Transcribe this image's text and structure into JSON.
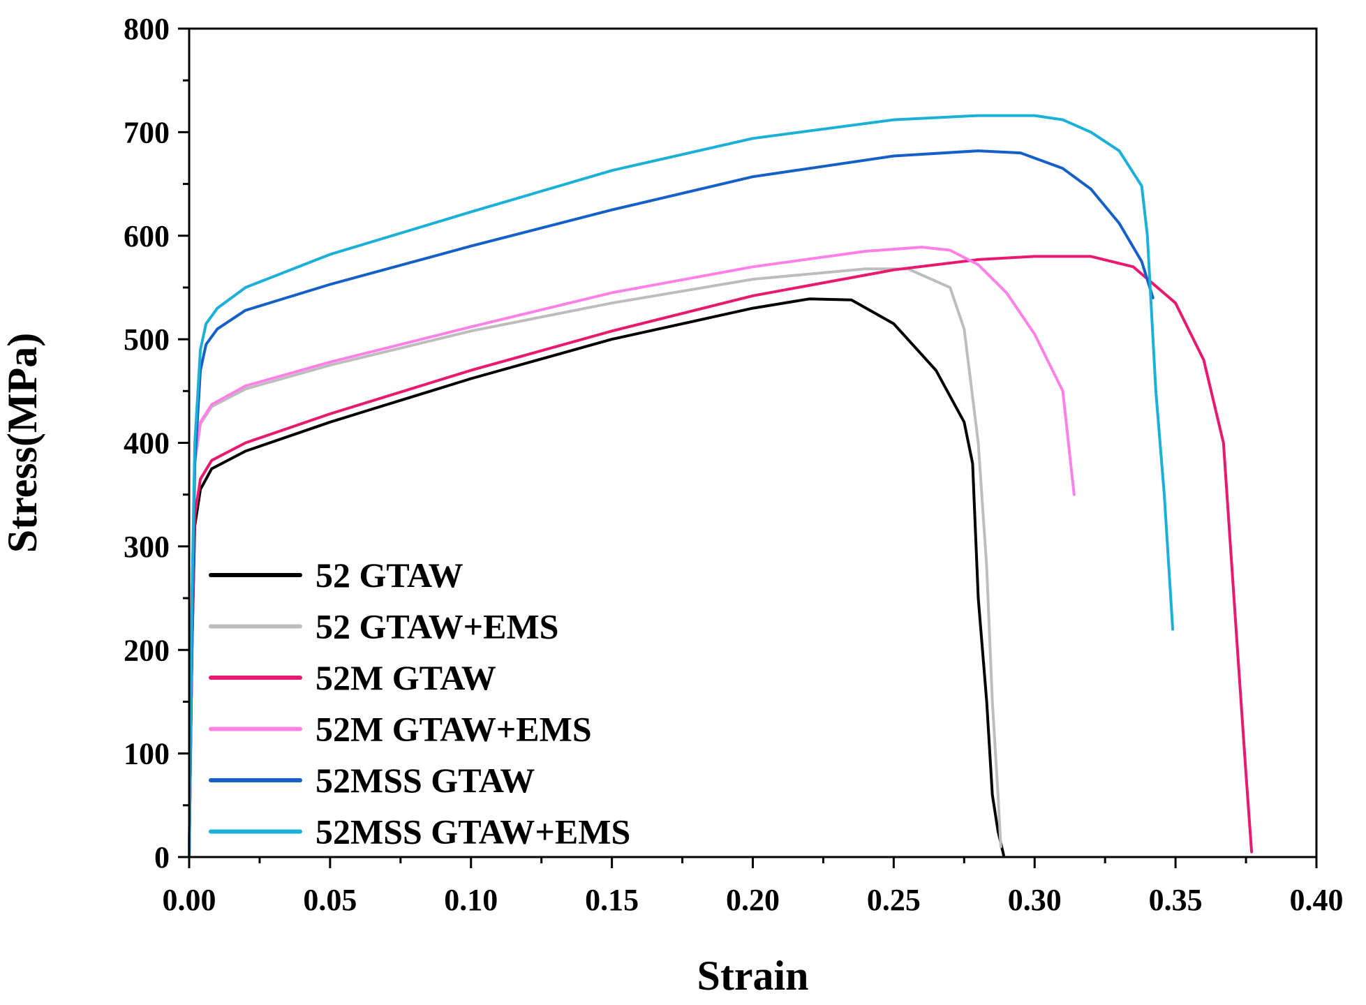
{
  "chart_data": {
    "type": "line",
    "title": "",
    "xlabel": "Strain",
    "ylabel": "Stress(MPa)",
    "xlim": [
      0.0,
      0.4
    ],
    "ylim": [
      0,
      800
    ],
    "x_ticks": [
      0.0,
      0.05,
      0.1,
      0.15,
      0.2,
      0.25,
      0.3,
      0.35,
      0.4
    ],
    "x_tick_labels": [
      "0.00",
      "0.05",
      "0.10",
      "0.15",
      "0.20",
      "0.25",
      "0.30",
      "0.35",
      "0.40"
    ],
    "y_ticks": [
      0,
      100,
      200,
      300,
      400,
      500,
      600,
      700,
      800
    ],
    "y_tick_labels": [
      "0",
      "100",
      "200",
      "300",
      "400",
      "500",
      "600",
      "700",
      "800"
    ],
    "grid": false,
    "legend_position": "bottom-left",
    "series": [
      {
        "name": "52 GTAW",
        "color": "#000000",
        "points": [
          [
            0,
            0
          ],
          [
            0.001,
            200
          ],
          [
            0.002,
            320
          ],
          [
            0.004,
            355
          ],
          [
            0.008,
            375
          ],
          [
            0.02,
            392
          ],
          [
            0.05,
            420
          ],
          [
            0.1,
            462
          ],
          [
            0.15,
            500
          ],
          [
            0.2,
            530
          ],
          [
            0.22,
            539
          ],
          [
            0.235,
            538
          ],
          [
            0.25,
            515
          ],
          [
            0.265,
            470
          ],
          [
            0.275,
            420
          ],
          [
            0.278,
            380
          ],
          [
            0.28,
            250
          ],
          [
            0.283,
            150
          ],
          [
            0.285,
            60
          ],
          [
            0.287,
            25
          ],
          [
            0.289,
            2
          ]
        ]
      },
      {
        "name": "52 GTAW+EMS",
        "color": "#bdbdbd",
        "points": [
          [
            0,
            0
          ],
          [
            0.001,
            250
          ],
          [
            0.002,
            380
          ],
          [
            0.004,
            418
          ],
          [
            0.008,
            435
          ],
          [
            0.02,
            452
          ],
          [
            0.05,
            475
          ],
          [
            0.1,
            508
          ],
          [
            0.15,
            535
          ],
          [
            0.2,
            558
          ],
          [
            0.24,
            568
          ],
          [
            0.255,
            568
          ],
          [
            0.27,
            550
          ],
          [
            0.275,
            510
          ],
          [
            0.28,
            400
          ],
          [
            0.283,
            280
          ],
          [
            0.285,
            150
          ],
          [
            0.287,
            60
          ],
          [
            0.288,
            10
          ]
        ]
      },
      {
        "name": "52M GTAW",
        "color": "#e8196e",
        "points": [
          [
            0,
            0
          ],
          [
            0.001,
            200
          ],
          [
            0.002,
            330
          ],
          [
            0.004,
            365
          ],
          [
            0.008,
            383
          ],
          [
            0.02,
            400
          ],
          [
            0.05,
            428
          ],
          [
            0.1,
            470
          ],
          [
            0.15,
            508
          ],
          [
            0.2,
            542
          ],
          [
            0.25,
            567
          ],
          [
            0.28,
            577
          ],
          [
            0.3,
            580
          ],
          [
            0.32,
            580
          ],
          [
            0.335,
            570
          ],
          [
            0.35,
            535
          ],
          [
            0.36,
            480
          ],
          [
            0.367,
            400
          ],
          [
            0.372,
            200
          ],
          [
            0.375,
            80
          ],
          [
            0.377,
            5
          ]
        ]
      },
      {
        "name": "52M GTAW+EMS",
        "color": "#ff80e6",
        "points": [
          [
            0,
            0
          ],
          [
            0.001,
            250
          ],
          [
            0.002,
            385
          ],
          [
            0.004,
            420
          ],
          [
            0.008,
            437
          ],
          [
            0.02,
            455
          ],
          [
            0.05,
            478
          ],
          [
            0.1,
            512
          ],
          [
            0.15,
            545
          ],
          [
            0.2,
            570
          ],
          [
            0.24,
            585
          ],
          [
            0.26,
            589
          ],
          [
            0.27,
            586
          ],
          [
            0.28,
            572
          ],
          [
            0.29,
            545
          ],
          [
            0.3,
            505
          ],
          [
            0.31,
            450
          ],
          [
            0.312,
            400
          ],
          [
            0.314,
            350
          ]
        ]
      },
      {
        "name": "52MSS GTAW",
        "color": "#1560c8",
        "points": [
          [
            0,
            0
          ],
          [
            0.001,
            200
          ],
          [
            0.002,
            380
          ],
          [
            0.004,
            470
          ],
          [
            0.006,
            495
          ],
          [
            0.01,
            510
          ],
          [
            0.02,
            528
          ],
          [
            0.05,
            553
          ],
          [
            0.1,
            590
          ],
          [
            0.15,
            625
          ],
          [
            0.2,
            657
          ],
          [
            0.25,
            677
          ],
          [
            0.28,
            682
          ],
          [
            0.295,
            680
          ],
          [
            0.31,
            665
          ],
          [
            0.32,
            645
          ],
          [
            0.33,
            612
          ],
          [
            0.338,
            575
          ],
          [
            0.342,
            540
          ]
        ]
      },
      {
        "name": "52MSS GTAW+EMS",
        "color": "#1ab0d8",
        "points": [
          [
            0,
            0
          ],
          [
            0.001,
            250
          ],
          [
            0.002,
            400
          ],
          [
            0.004,
            490
          ],
          [
            0.006,
            515
          ],
          [
            0.01,
            530
          ],
          [
            0.02,
            550
          ],
          [
            0.05,
            582
          ],
          [
            0.1,
            623
          ],
          [
            0.15,
            663
          ],
          [
            0.2,
            694
          ],
          [
            0.25,
            712
          ],
          [
            0.28,
            716
          ],
          [
            0.3,
            716
          ],
          [
            0.31,
            712
          ],
          [
            0.32,
            700
          ],
          [
            0.33,
            682
          ],
          [
            0.338,
            648
          ],
          [
            0.34,
            600
          ],
          [
            0.343,
            450
          ],
          [
            0.346,
            350
          ],
          [
            0.349,
            220
          ]
        ]
      }
    ]
  }
}
